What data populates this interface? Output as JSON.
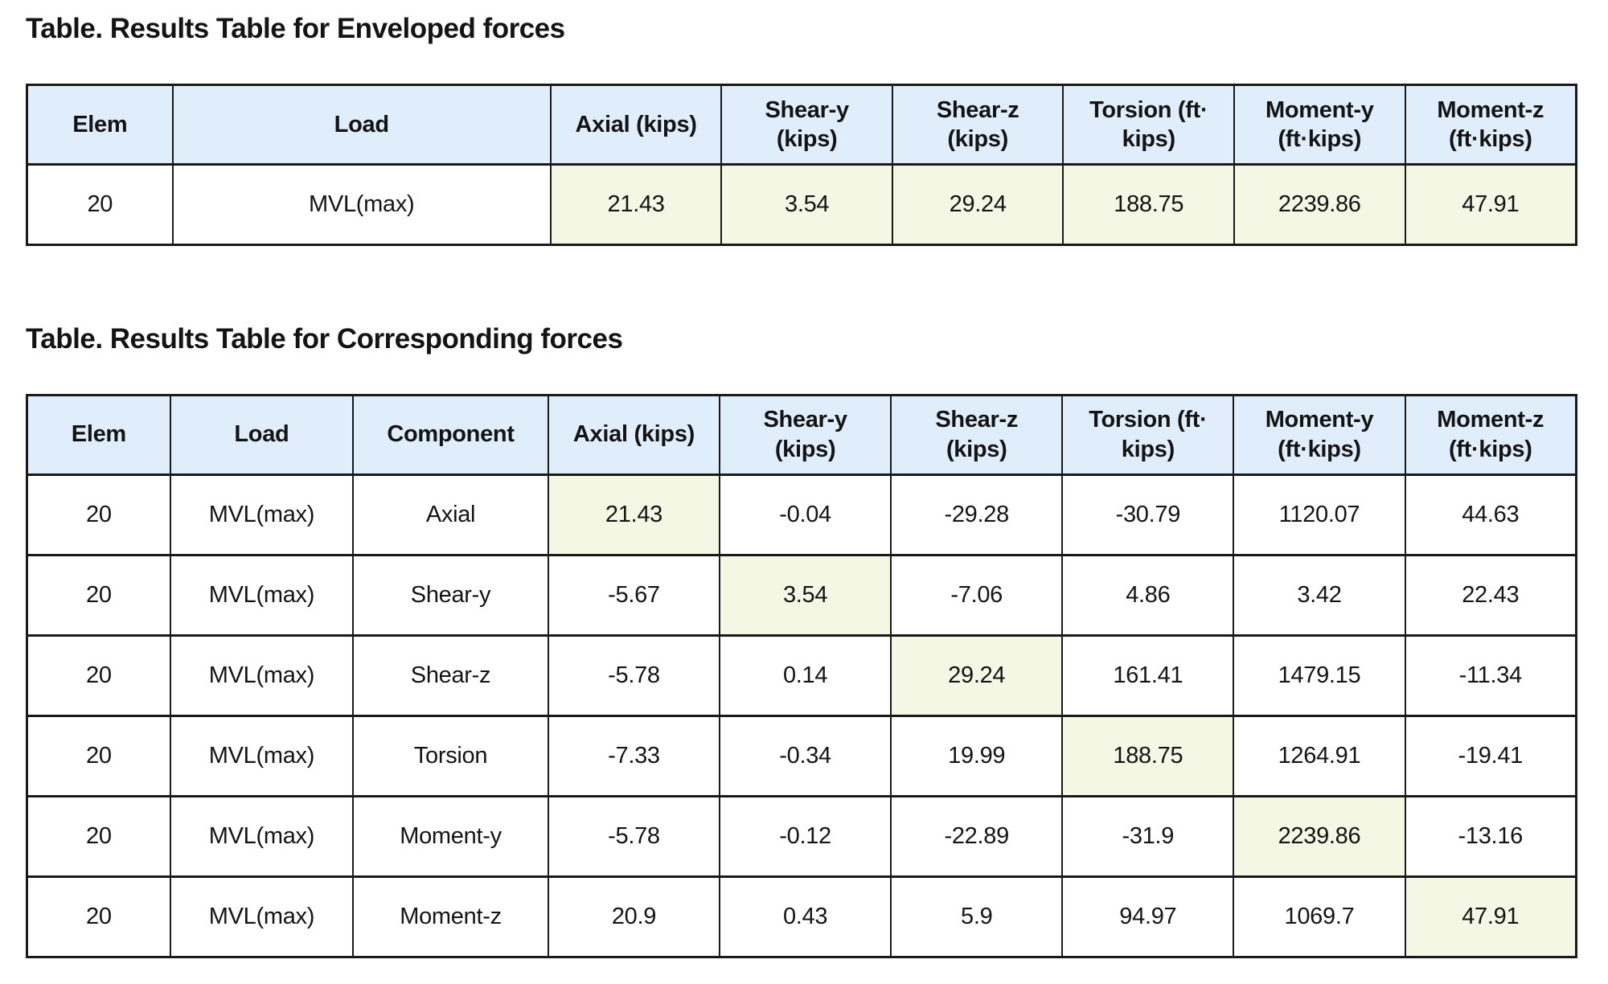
{
  "colors": {
    "header_bg": "#dfeefa",
    "highlight_bg": "#f3f7e3",
    "border": "#1a1a1a",
    "text": "#141414",
    "page_bg": "#ffffff"
  },
  "enveloped": {
    "title": "Table. Results Table for Enveloped forces",
    "columns": [
      "Elem",
      "Load",
      "Axial (kips)",
      "Shear-y\n(kips)",
      "Shear-z\n(kips)",
      "Torsion (ft·\nkips)",
      "Moment-y\n(ft·kips)",
      "Moment-z\n(ft·kips)"
    ],
    "rows": [
      {
        "elem": "20",
        "load": "MVL(max)",
        "values": [
          "21.43",
          "3.54",
          "29.24",
          "188.75",
          "2239.86",
          "47.91"
        ],
        "highlight": [
          0,
          1,
          2,
          3,
          4,
          5
        ]
      }
    ]
  },
  "corresponding": {
    "title": "Table. Results Table for Corresponding forces",
    "columns": [
      "Elem",
      "Load",
      "Component",
      "Axial (kips)",
      "Shear-y\n(kips)",
      "Shear-z\n(kips)",
      "Torsion (ft·\nkips)",
      "Moment-y\n(ft·kips)",
      "Moment-z\n(ft·kips)"
    ],
    "rows": [
      {
        "elem": "20",
        "load": "MVL(max)",
        "component": "Axial",
        "values": [
          "21.43",
          "-0.04",
          "-29.28",
          "-30.79",
          "1120.07",
          "44.63"
        ],
        "highlight": 0
      },
      {
        "elem": "20",
        "load": "MVL(max)",
        "component": "Shear-y",
        "values": [
          "-5.67",
          "3.54",
          "-7.06",
          "4.86",
          "3.42",
          "22.43"
        ],
        "highlight": 1
      },
      {
        "elem": "20",
        "load": "MVL(max)",
        "component": "Shear-z",
        "values": [
          "-5.78",
          "0.14",
          "29.24",
          "161.41",
          "1479.15",
          "-11.34"
        ],
        "highlight": 2
      },
      {
        "elem": "20",
        "load": "MVL(max)",
        "component": "Torsion",
        "values": [
          "-7.33",
          "-0.34",
          "19.99",
          "188.75",
          "1264.91",
          "-19.41"
        ],
        "highlight": 3
      },
      {
        "elem": "20",
        "load": "MVL(max)",
        "component": "Moment-y",
        "values": [
          "-5.78",
          "-0.12",
          "-22.89",
          "-31.9",
          "2239.86",
          "-13.16"
        ],
        "highlight": 4
      },
      {
        "elem": "20",
        "load": "MVL(max)",
        "component": "Moment-z",
        "values": [
          "20.9",
          "0.43",
          "5.9",
          "94.97",
          "1069.7",
          "47.91"
        ],
        "highlight": 5
      }
    ]
  }
}
